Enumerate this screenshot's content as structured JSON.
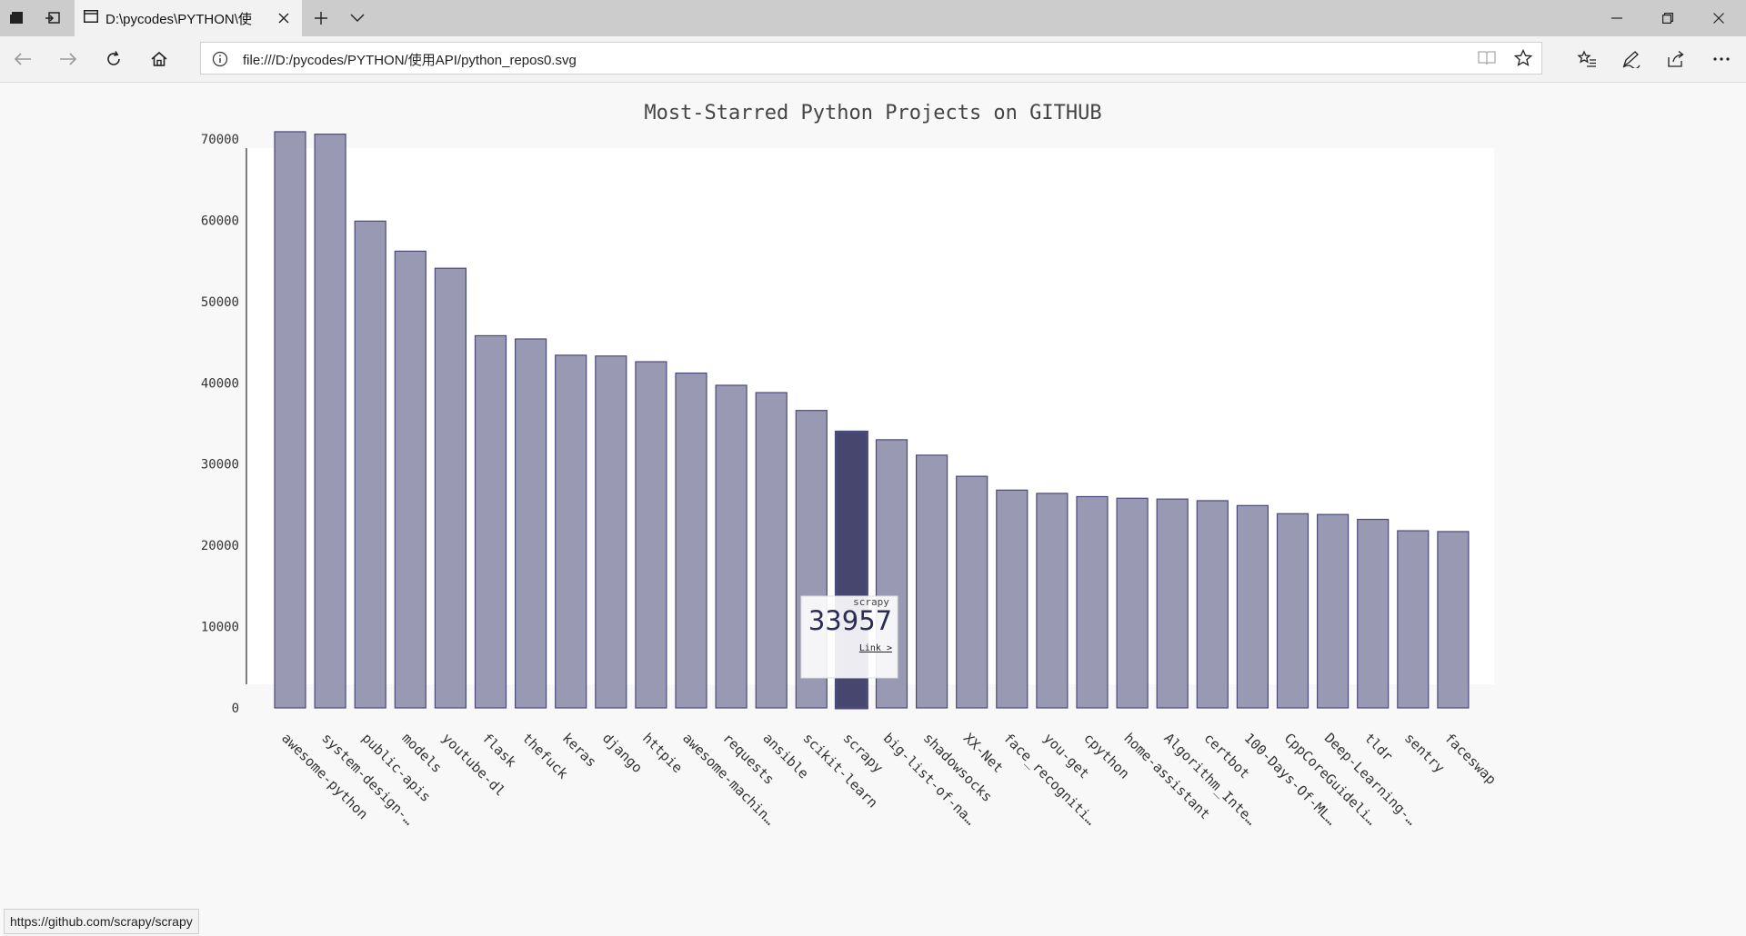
{
  "browser": {
    "tab_title": "D:\\pycodes\\PYTHON\\使",
    "url": "file:///D:/pycodes/PYTHON/使用API/python_repos0.svg",
    "status_url": "https://github.com/scrapy/scrapy"
  },
  "colors": {
    "bar_fill": "#9999b4",
    "bar_stroke": "#4a4a7a",
    "bar_highlight": "#46466f",
    "plot_bg": "#ffffff",
    "page_bg": "#f8f8f8",
    "tooltip_value": "#2b2b55"
  },
  "chart_data": {
    "type": "bar",
    "title": "Most-Starred Python Projects on GITHUB",
    "xlabel": "",
    "ylabel": "",
    "ylim": [
      0,
      73500
    ],
    "yticks": [
      0,
      10000,
      20000,
      30000,
      40000,
      50000,
      60000,
      70000
    ],
    "ytick_labels": [
      "0",
      "10000",
      "20000",
      "30000",
      "40000",
      "50000",
      "60000",
      "70000"
    ],
    "grid": false,
    "legend": "none",
    "categories": [
      "awesome-python",
      "system-design-…",
      "public-apis",
      "models",
      "youtube-dl",
      "flask",
      "thefuck",
      "keras",
      "django",
      "httpie",
      "awesome-machin…",
      "requests",
      "ansible",
      "scikit-learn",
      "scrapy",
      "big-list-of-na…",
      "shadowsocks",
      "XX-Net",
      "face_recogniti…",
      "you-get",
      "cpython",
      "home-assistant",
      "Algorithm_Inte…",
      "certbot",
      "100-Days-Of-ML…",
      "CppCoreGuideli…",
      "Deep-Learning-…",
      "tldr",
      "sentry",
      "faceswap"
    ],
    "values": [
      70900,
      70600,
      59900,
      56200,
      54100,
      45800,
      45400,
      43400,
      43300,
      42600,
      41200,
      39700,
      38800,
      36600,
      33957,
      33000,
      31100,
      28500,
      26800,
      26400,
      26000,
      25800,
      25700,
      25500,
      24900,
      23900,
      23800,
      23200,
      21800,
      21700
    ],
    "highlight_index": 14,
    "tooltip": {
      "label": "scrapy",
      "value": "33957",
      "link_text": "Link >"
    }
  }
}
